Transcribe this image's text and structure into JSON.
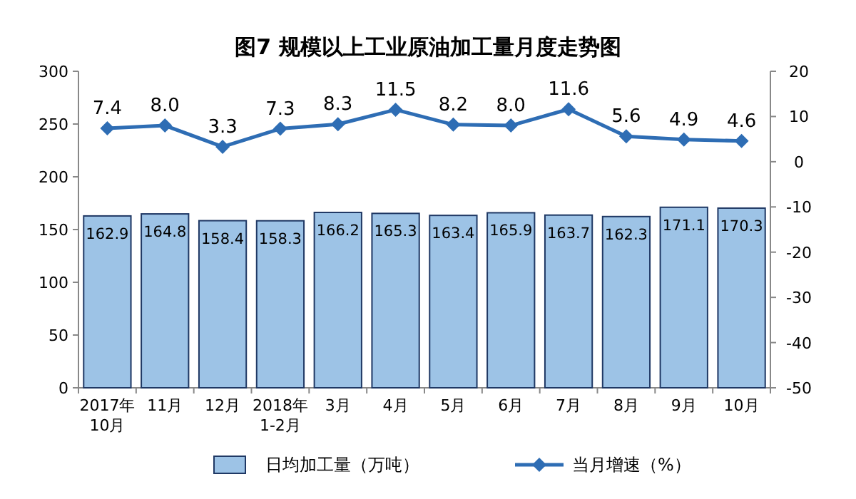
{
  "chart_data": {
    "type": "bar",
    "title": "图7  规模以上工业原油加工量月度走势图",
    "categories": [
      "2017年\n10月",
      "11月",
      "12月",
      "2018年\n1-2月",
      "3月",
      "4月",
      "5月",
      "6月",
      "7月",
      "8月",
      "9月",
      "10月"
    ],
    "series": [
      {
        "name": "日均加工量（万吨）",
        "color": "#9dc3e6",
        "values": [
          162.9,
          164.8,
          158.4,
          158.3,
          166.2,
          165.3,
          163.4,
          165.9,
          163.7,
          162.3,
          171.1,
          170.3
        ]
      },
      {
        "name": "当月增速（%）",
        "type": "line",
        "axis": "y2",
        "color": "#2e6db4",
        "marker": "diamond",
        "values": [
          7.4,
          8.0,
          3.3,
          7.3,
          8.3,
          11.5,
          8.2,
          8.0,
          11.6,
          5.6,
          4.9,
          4.6
        ],
        "value_labels": [
          "7.4",
          "8.0",
          "3.3",
          "7.3",
          "8.3",
          "11.5",
          "8.2",
          "8.0",
          "11.6",
          "5.6",
          "4.9",
          "4.6"
        ]
      }
    ],
    "ylim": [
      0,
      300
    ],
    "yticks": [
      0,
      50,
      100,
      150,
      200,
      250,
      300
    ],
    "y2lim": [
      -50,
      20
    ],
    "y2ticks": [
      -50,
      -40,
      -30,
      -20,
      -10,
      0,
      10,
      20
    ],
    "data_labels": true,
    "legend": "bottom",
    "grid": false
  }
}
